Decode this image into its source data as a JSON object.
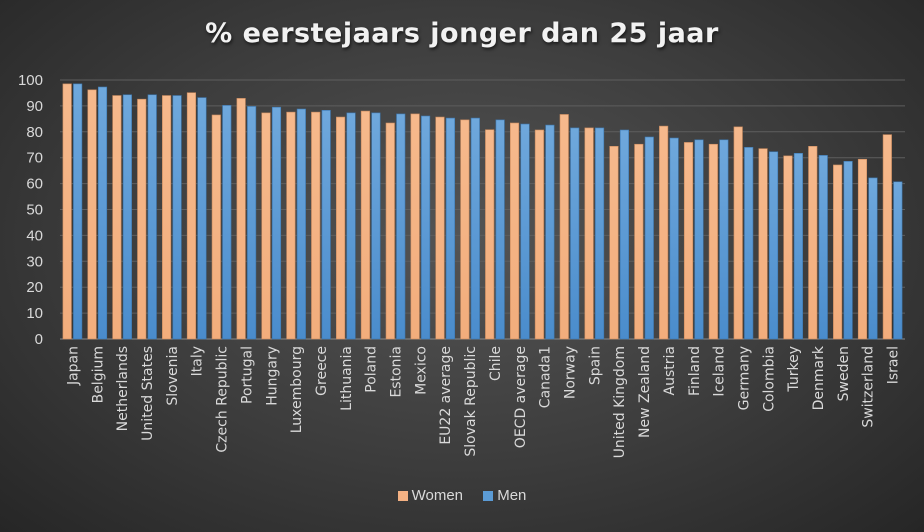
{
  "chart_data": {
    "type": "bar",
    "title": "% eerstejaars jonger dan 25 jaar",
    "xlabel": "",
    "ylabel": "",
    "ylim": [
      0,
      100
    ],
    "yticks": [
      0,
      10,
      20,
      30,
      40,
      50,
      60,
      70,
      80,
      90,
      100
    ],
    "grid": true,
    "legend_position": "bottom",
    "categories": [
      "Japan",
      "Belgium",
      "Netherlands",
      "United States",
      "Slovenia",
      "Italy",
      "Czech Republic",
      "Portugal",
      "Hungary",
      "Luxembourg",
      "Greece",
      "Lithuania",
      "Poland",
      "Estonia",
      "Mexico",
      "EU22 average",
      "Slovak Republic",
      "Chile",
      "OECD average",
      "Canada1",
      "Norway",
      "Spain",
      "United Kingdom",
      "New Zealand",
      "Austria",
      "Finland",
      "Iceland",
      "Germany",
      "Colombia",
      "Turkey",
      "Denmark",
      "Sweden",
      "Switzerland",
      "Israel"
    ],
    "series": [
      {
        "name": "Women",
        "color": "#f4b183",
        "values": [
          98.5,
          96.2,
          94.0,
          92.6,
          94.0,
          95.1,
          86.5,
          92.9,
          87.3,
          87.6,
          87.6,
          85.7,
          88.0,
          83.4,
          86.9,
          85.7,
          84.6,
          80.8,
          83.4,
          80.7,
          86.7,
          81.5,
          74.4,
          75.2,
          82.2,
          75.9,
          75.2,
          81.9,
          73.5,
          70.7,
          74.4,
          67.2,
          69.4,
          78.9
        ]
      },
      {
        "name": "Men",
        "color": "#5b9bd5",
        "values": [
          98.5,
          97.3,
          94.3,
          94.3,
          94.0,
          93.2,
          90.2,
          89.8,
          89.5,
          88.8,
          88.3,
          87.3,
          87.3,
          86.9,
          86.1,
          85.3,
          85.3,
          84.6,
          83.0,
          82.6,
          81.5,
          81.5,
          80.7,
          78.0,
          77.6,
          76.9,
          76.9,
          74.0,
          72.3,
          71.7,
          70.9,
          68.6,
          62.2,
          60.7
        ]
      }
    ]
  }
}
